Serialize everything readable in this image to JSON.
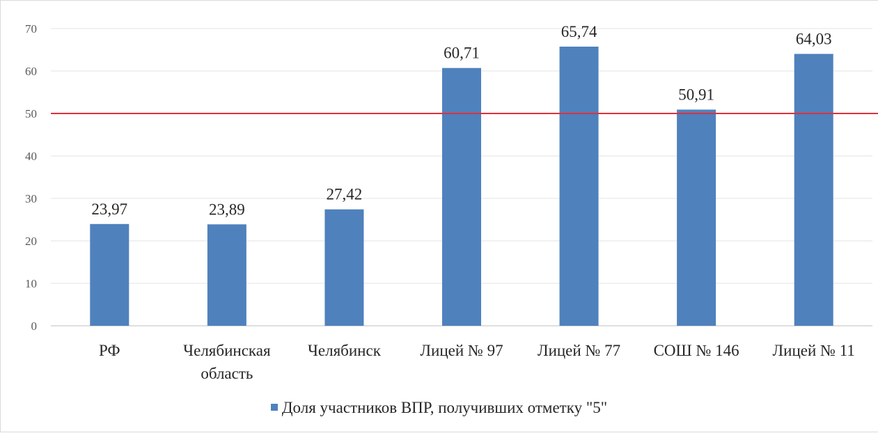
{
  "chart_data": {
    "type": "bar",
    "categories": [
      [
        "РФ"
      ],
      [
        "Челябинская",
        "область"
      ],
      [
        "Челябинск"
      ],
      [
        "Лицей № 97"
      ],
      [
        "Лицей № 77"
      ],
      [
        "СОШ  № 146"
      ],
      [
        "Лицей № 11"
      ]
    ],
    "series": [
      {
        "name": "Доля участников ВПР, получивших отметку \"5\"",
        "values": [
          23.97,
          23.89,
          27.42,
          60.71,
          65.74,
          50.91,
          64.03
        ],
        "labels": [
          "23,97",
          "23,89",
          "27,42",
          "60,71",
          "65,74",
          "50,91",
          "64,03"
        ]
      }
    ],
    "ylim": [
      0,
      70
    ],
    "yticks": [
      0,
      10,
      20,
      30,
      40,
      50,
      60,
      70
    ],
    "reference_line": 50,
    "grid": true,
    "legend_position": "bottom",
    "title": "",
    "xlabel": "",
    "ylabel": ""
  },
  "colors": {
    "bar": "#4f81bd",
    "reference_line": "#e0303c",
    "grid": "#e3e3e3",
    "axis": "#bfbfbf"
  },
  "legend": {
    "label": "Доля участников ВПР, получивших отметку \"5\""
  }
}
